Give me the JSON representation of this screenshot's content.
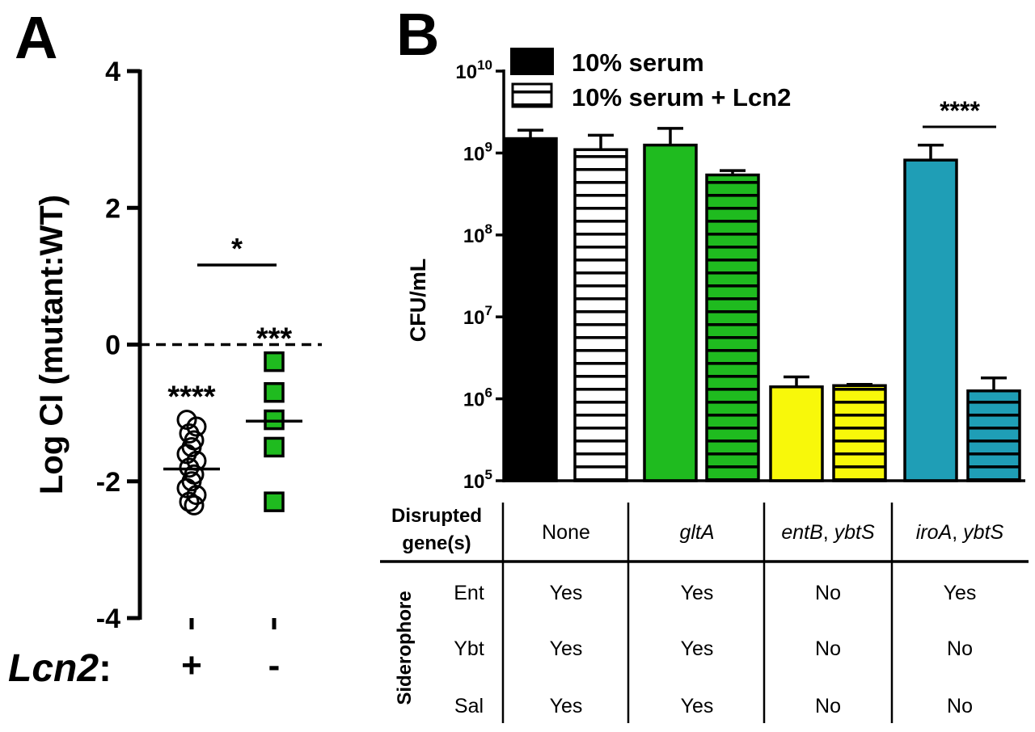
{
  "colors": {
    "wt": "#000000",
    "glta": "#1fbb1f",
    "entb": "#f8f80a",
    "iroa": "#1f9eb6",
    "axis": "#000000"
  },
  "panel_a": {
    "letter": "A",
    "lcn2_label": "Lcn2",
    "lcn2_colon": ":",
    "comparison_sig": "*"
  },
  "panel_b": {
    "letter": "B",
    "table": {
      "header_label_line1": "Disrupted",
      "header_label_line2": "gene(s)",
      "columns": [
        {
          "label": "None",
          "parts": [
            {
              "text": "None",
              "italic": false
            }
          ]
        },
        {
          "label": "gltA",
          "parts": [
            {
              "text": "gltA",
              "italic": true
            }
          ]
        },
        {
          "label": "entB, ybtS",
          "parts": [
            {
              "text": "entB",
              "italic": true
            },
            {
              "text": ", ",
              "italic": false
            },
            {
              "text": "ybtS",
              "italic": true
            }
          ]
        },
        {
          "label": "iroA, ybtS",
          "parts": [
            {
              "text": "iroA",
              "italic": true
            },
            {
              "text": ", ",
              "italic": false
            },
            {
              "text": "ybtS",
              "italic": true
            }
          ]
        }
      ],
      "row_group_label": "Siderophore",
      "rows": [
        {
          "name": "Ent",
          "values": [
            "Yes",
            "Yes",
            "No",
            "Yes"
          ]
        },
        {
          "name": "Ybt",
          "values": [
            "Yes",
            "Yes",
            "No",
            "No"
          ]
        },
        {
          "name": "Sal",
          "values": [
            "Yes",
            "Yes",
            "No",
            "No"
          ]
        }
      ]
    }
  },
  "chart_data": [
    {
      "type": "scatter",
      "title": "",
      "xlabel": "",
      "ylabel": "Log CI (mutant:WT)",
      "ylim": [
        -4,
        4
      ],
      "yticks": [
        4,
        2,
        0,
        -2,
        -4
      ],
      "ytick_labels": [
        "4",
        "2",
        "0",
        "-2",
        "-4"
      ],
      "reference_line": 0,
      "categories": [
        "+",
        "-"
      ],
      "series": [
        {
          "category": "+",
          "marker": "open-circle",
          "values": [
            -1.1,
            -1.2,
            -1.3,
            -1.4,
            -1.5,
            -1.6,
            -1.7,
            -1.8,
            -1.9,
            -2.0,
            -2.1,
            -2.2,
            -2.3,
            -2.35
          ],
          "median": -1.82,
          "significance": "****"
        },
        {
          "category": "-",
          "marker": "green-square",
          "values": [
            -0.25,
            -0.7,
            -1.1,
            -1.5,
            -2.3
          ],
          "median": -1.12,
          "significance": "***"
        }
      ],
      "comparisons": [
        {
          "between": [
            "+",
            "-"
          ],
          "label": "*"
        }
      ]
    },
    {
      "type": "bar",
      "title": "",
      "xlabel": "",
      "ylabel": "CFU/mL",
      "yscale": "log",
      "ylim": [
        100000,
        10000000000
      ],
      "ytick_base": "10",
      "ytick_exponents": [
        "5",
        "6",
        "7",
        "8",
        "9",
        "10"
      ],
      "legend": {
        "placement": "top-left",
        "entries": [
          {
            "label": "10% serum",
            "pattern": "solid"
          },
          {
            "label": "10% serum + Lcn2",
            "pattern": "horizontal-stripes"
          }
        ]
      },
      "categories": [
        "None",
        "gltA",
        "entB, ybtS",
        "iroA, ybtS"
      ],
      "bars": [
        {
          "group": "None",
          "condition": "10% serum",
          "value": 1500000000,
          "error": 1900000000,
          "color": "#000000",
          "pattern": "solid"
        },
        {
          "group": "None",
          "condition": "10% serum + Lcn2",
          "value": 1100000000,
          "error": 1650000000,
          "color": "#000000",
          "pattern": "horizontal-stripes"
        },
        {
          "group": "gltA",
          "condition": "10% serum",
          "value": 1250000000,
          "error": 2000000000,
          "color": "#1fbb1f",
          "pattern": "solid"
        },
        {
          "group": "gltA",
          "condition": "10% serum + Lcn2",
          "value": 540000000,
          "error": 610000000,
          "color": "#1fbb1f",
          "pattern": "horizontal-stripes"
        },
        {
          "group": "entB, ybtS",
          "condition": "10% serum",
          "value": 1400000,
          "error": 1850000,
          "color": "#f8f80a",
          "pattern": "solid"
        },
        {
          "group": "entB, ybtS",
          "condition": "10% serum + Lcn2",
          "value": 1450000,
          "error": 1500000,
          "color": "#f8f80a",
          "pattern": "horizontal-stripes"
        },
        {
          "group": "iroA, ybtS",
          "condition": "10% serum",
          "value": 820000000,
          "error": 1250000000,
          "color": "#1f9eb6",
          "pattern": "solid"
        },
        {
          "group": "iroA, ybtS",
          "condition": "10% serum + Lcn2",
          "value": 1250000,
          "error": 1800000,
          "color": "#1f9eb6",
          "pattern": "horizontal-stripes"
        }
      ],
      "comparisons": [
        {
          "between": [
            "iroA, ybtS: 10% serum",
            "iroA, ybtS: 10% serum + Lcn2"
          ],
          "label": "****"
        }
      ]
    }
  ]
}
